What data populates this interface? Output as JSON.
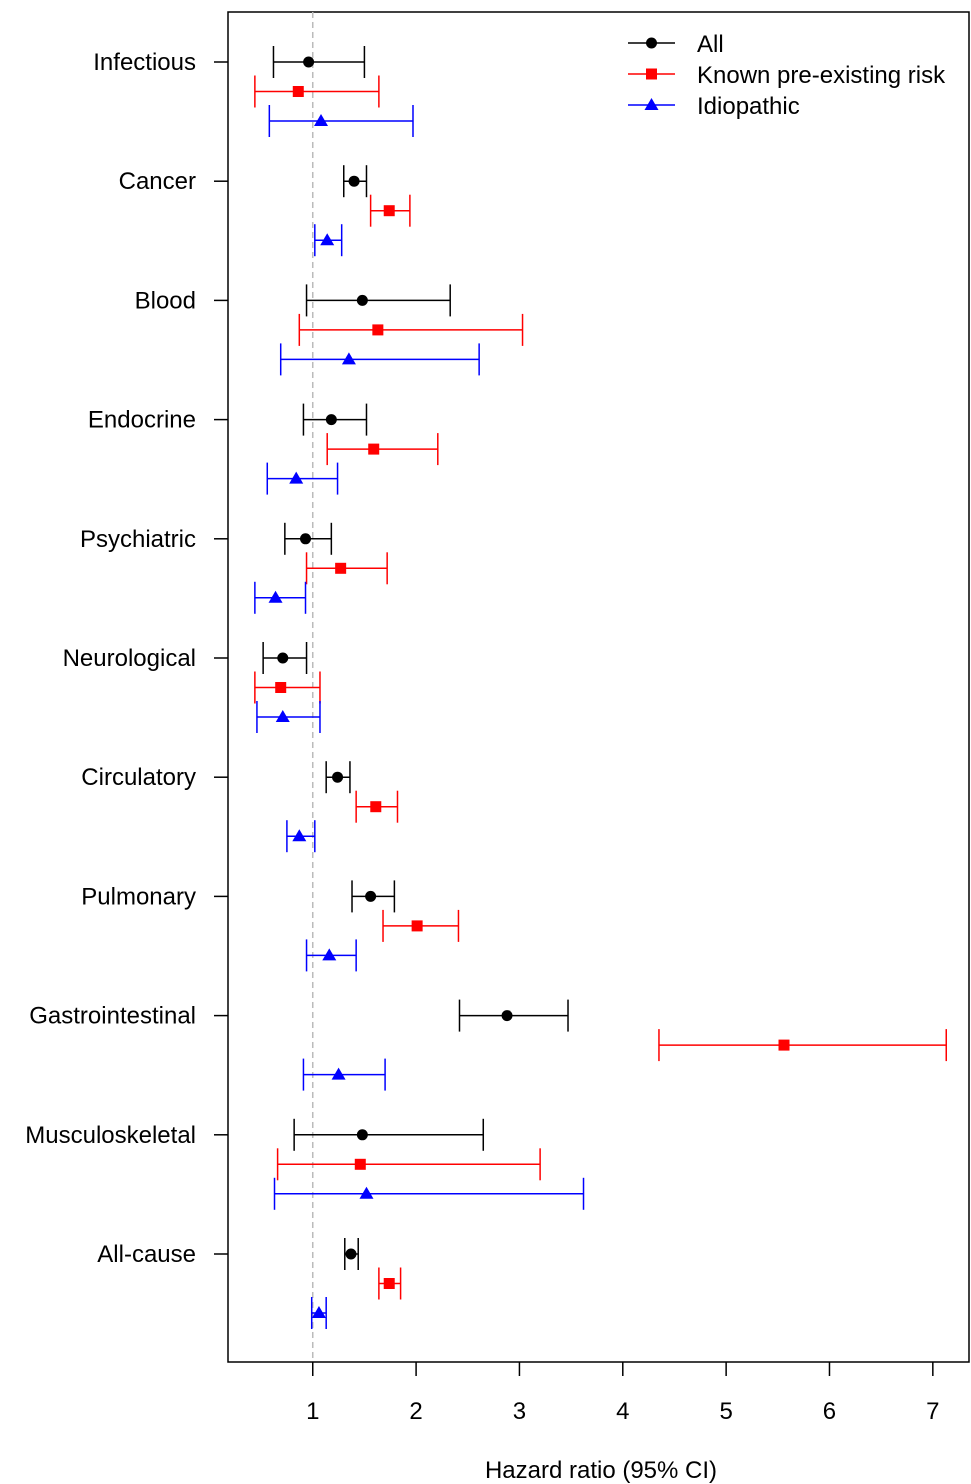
{
  "chart_data": {
    "type": "scatter",
    "title": "",
    "xlabel": "Hazard ratio (95% CI)",
    "ylabel": "",
    "xlim": [
      0.18,
      7.35
    ],
    "xticks": [
      "1",
      "2",
      "3",
      "4",
      "5",
      "6",
      "7"
    ],
    "reference_line": 1,
    "grid": false,
    "legend_position": "top-right",
    "categories": [
      "Infectious",
      "Cancer",
      "Blood",
      "Endocrine",
      "Psychiatric",
      "Neurological",
      "Circulatory",
      "Pulmonary",
      "Gastrointestinal",
      "Musculoskeletal",
      "All-cause"
    ],
    "series": [
      {
        "name": "All",
        "color": "#000000",
        "marker": "circle",
        "points": [
          {
            "est": 0.96,
            "lo": 0.62,
            "hi": 1.5
          },
          {
            "est": 1.4,
            "lo": 1.3,
            "hi": 1.52
          },
          {
            "est": 1.48,
            "lo": 0.94,
            "hi": 2.33
          },
          {
            "est": 1.18,
            "lo": 0.91,
            "hi": 1.52
          },
          {
            "est": 0.93,
            "lo": 0.73,
            "hi": 1.18
          },
          {
            "est": 0.71,
            "lo": 0.52,
            "hi": 0.94
          },
          {
            "est": 1.24,
            "lo": 1.13,
            "hi": 1.36
          },
          {
            "est": 1.56,
            "lo": 1.38,
            "hi": 1.79
          },
          {
            "est": 2.88,
            "lo": 2.42,
            "hi": 3.47
          },
          {
            "est": 1.48,
            "lo": 0.82,
            "hi": 2.65
          },
          {
            "est": 1.37,
            "lo": 1.31,
            "hi": 1.44
          }
        ]
      },
      {
        "name": "Known pre-existing risk",
        "color": "#ff0000",
        "marker": "square",
        "points": [
          {
            "est": 0.86,
            "lo": 0.44,
            "hi": 1.64
          },
          {
            "est": 1.74,
            "lo": 1.56,
            "hi": 1.94
          },
          {
            "est": 1.63,
            "lo": 0.87,
            "hi": 3.03
          },
          {
            "est": 1.59,
            "lo": 1.14,
            "hi": 2.21
          },
          {
            "est": 1.27,
            "lo": 0.94,
            "hi": 1.72
          },
          {
            "est": 0.69,
            "lo": 0.44,
            "hi": 1.07
          },
          {
            "est": 1.61,
            "lo": 1.42,
            "hi": 1.82
          },
          {
            "est": 2.01,
            "lo": 1.68,
            "hi": 2.41
          },
          {
            "est": 5.56,
            "lo": 4.35,
            "hi": 7.13
          },
          {
            "est": 1.46,
            "lo": 0.66,
            "hi": 3.2
          },
          {
            "est": 1.74,
            "lo": 1.64,
            "hi": 1.85
          }
        ]
      },
      {
        "name": "Idiopathic",
        "color": "#0000ff",
        "marker": "triangle",
        "points": [
          {
            "est": 1.08,
            "lo": 0.58,
            "hi": 1.97
          },
          {
            "est": 1.14,
            "lo": 1.02,
            "hi": 1.28
          },
          {
            "est": 1.35,
            "lo": 0.69,
            "hi": 2.61
          },
          {
            "est": 0.84,
            "lo": 0.56,
            "hi": 1.24
          },
          {
            "est": 0.64,
            "lo": 0.44,
            "hi": 0.93
          },
          {
            "est": 0.71,
            "lo": 0.46,
            "hi": 1.07
          },
          {
            "est": 0.87,
            "lo": 0.75,
            "hi": 1.02
          },
          {
            "est": 1.16,
            "lo": 0.94,
            "hi": 1.42
          },
          {
            "est": 1.25,
            "lo": 0.91,
            "hi": 1.7
          },
          {
            "est": 1.52,
            "lo": 0.63,
            "hi": 3.62
          },
          {
            "est": 1.06,
            "lo": 0.99,
            "hi": 1.13
          }
        ]
      }
    ]
  }
}
